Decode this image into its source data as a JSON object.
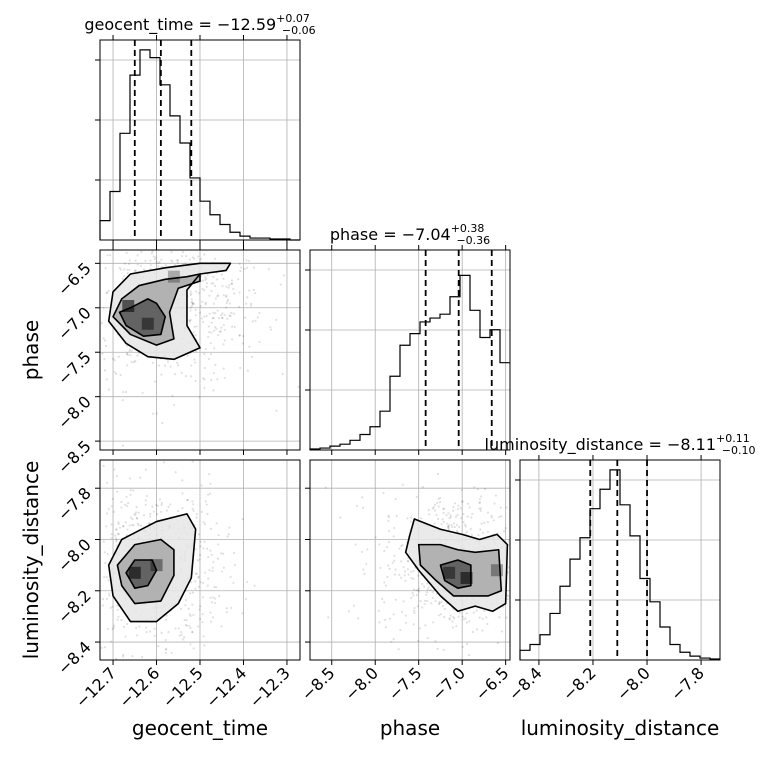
{
  "chart_data": {
    "type": "corner",
    "parameters": [
      "geocent_time",
      "phase",
      "luminosity_distance"
    ],
    "grid": true,
    "marginals": [
      {
        "param": "geocent_time",
        "title": {
          "main": "geocent_time = −12.59",
          "sup": "+0.07",
          "sub": "−0.06"
        },
        "range": [
          -12.73,
          -12.27
        ],
        "quantiles": [
          -12.65,
          -12.59,
          -12.52
        ],
        "bin_edges": [
          -12.73,
          -12.707,
          -12.684,
          -12.661,
          -12.638,
          -12.615,
          -12.592,
          -12.569,
          -12.546,
          -12.523,
          -12.5,
          -12.477,
          -12.454,
          -12.431,
          -12.408,
          -12.385,
          -12.362,
          -12.339,
          -12.316,
          -12.293,
          -12.27
        ],
        "counts": [
          10,
          25,
          55,
          85,
          98,
          94,
          80,
          64,
          50,
          32,
          20,
          13,
          8,
          4,
          2,
          1,
          1,
          0.5,
          0.5,
          0
        ],
        "ymax": 100
      },
      {
        "param": "phase",
        "title": {
          "main": "phase = −7.04",
          "sup": "+0.38",
          "sub": "−0.36"
        },
        "range": [
          -8.75,
          -6.45
        ],
        "quantiles": [
          -7.42,
          -7.04,
          -6.66
        ],
        "bin_edges": [
          -8.75,
          -8.635,
          -8.52,
          -8.405,
          -8.29,
          -8.175,
          -8.06,
          -7.945,
          -7.83,
          -7.715,
          -7.6,
          -7.485,
          -7.37,
          -7.255,
          -7.14,
          -7.025,
          -6.91,
          -6.795,
          -6.68,
          -6.565,
          -6.45
        ],
        "counts": [
          0.5,
          1,
          2,
          3,
          5,
          8,
          12,
          20,
          38,
          54,
          60,
          66,
          68,
          70,
          79,
          90,
          72,
          58,
          62,
          45
        ],
        "ymax": 100
      },
      {
        "param": "luminosity_distance",
        "title": {
          "main": "luminosity_distance = −8.11",
          "sup": "+0.11",
          "sub": "−0.10"
        },
        "range": [
          -8.47,
          -7.73
        ],
        "quantiles": [
          -8.21,
          -8.11,
          -8.0
        ],
        "bin_edges": [
          -8.47,
          -8.433,
          -8.396,
          -8.359,
          -8.322,
          -8.285,
          -8.248,
          -8.211,
          -8.174,
          -8.137,
          -8.1,
          -8.063,
          -8.026,
          -7.989,
          -7.952,
          -7.915,
          -7.878,
          -7.841,
          -7.804,
          -7.767,
          -7.73
        ],
        "counts": [
          5,
          8,
          13,
          24,
          38,
          52,
          63,
          78,
          88,
          98,
          80,
          64,
          42,
          30,
          17,
          8,
          4,
          2,
          1,
          0.5
        ],
        "ymax": 100
      }
    ],
    "joints": [
      {
        "x": "geocent_time",
        "y": "phase",
        "xrange": [
          -12.73,
          -12.27
        ],
        "yrange": [
          -8.6,
          -6.35
        ],
        "peaks": [
          {
            "x": -12.665,
            "y": -6.98,
            "w": 1.0
          },
          {
            "x": -12.62,
            "y": -7.18,
            "w": 0.8
          },
          {
            "x": -12.56,
            "y": -6.65,
            "w": 0.5
          }
        ],
        "contours": [
          {
            "level": "outer",
            "points": [
              [
                -12.7,
                -6.82
              ],
              [
                -12.66,
                -6.62
              ],
              [
                -12.58,
                -6.55
              ],
              [
                -12.5,
                -6.5
              ],
              [
                -12.43,
                -6.5
              ],
              [
                -12.44,
                -6.58
              ],
              [
                -12.5,
                -6.62
              ],
              [
                -12.53,
                -6.8
              ],
              [
                -12.53,
                -7.2
              ],
              [
                -12.5,
                -7.45
              ],
              [
                -12.56,
                -7.58
              ],
              [
                -12.62,
                -7.55
              ],
              [
                -12.67,
                -7.4
              ],
              [
                -12.71,
                -7.15
              ]
            ]
          },
          {
            "level": "middle",
            "points": [
              [
                -12.68,
                -6.9
              ],
              [
                -12.64,
                -6.75
              ],
              [
                -12.58,
                -6.68
              ],
              [
                -12.53,
                -6.65
              ],
              [
                -12.5,
                -6.62
              ],
              [
                -12.5,
                -6.7
              ],
              [
                -12.55,
                -6.78
              ],
              [
                -12.57,
                -7.05
              ],
              [
                -12.56,
                -7.35
              ],
              [
                -12.6,
                -7.42
              ],
              [
                -12.66,
                -7.3
              ],
              [
                -12.7,
                -7.1
              ]
            ]
          },
          {
            "level": "inner",
            "points": [
              [
                -12.66,
                -7.0
              ],
              [
                -12.62,
                -6.9
              ],
              [
                -12.6,
                -6.95
              ],
              [
                -12.58,
                -7.1
              ],
              [
                -12.59,
                -7.3
              ],
              [
                -12.63,
                -7.32
              ],
              [
                -12.67,
                -7.2
              ],
              [
                -12.685,
                -7.05
              ]
            ]
          }
        ]
      },
      {
        "x": "geocent_time",
        "y": "luminosity_distance",
        "xrange": [
          -12.73,
          -12.27
        ],
        "yrange": [
          -8.47,
          -7.69
        ],
        "peaks": [
          {
            "x": -12.65,
            "y": -8.13,
            "w": 1.0
          },
          {
            "x": -12.6,
            "y": -8.1,
            "w": 0.7
          }
        ],
        "contours": [
          {
            "level": "outer",
            "points": [
              [
                -12.71,
                -8.1
              ],
              [
                -12.68,
                -8.0
              ],
              [
                -12.6,
                -7.93
              ],
              [
                -12.53,
                -7.9
              ],
              [
                -12.51,
                -7.96
              ],
              [
                -12.52,
                -8.15
              ],
              [
                -12.55,
                -8.25
              ],
              [
                -12.6,
                -8.32
              ],
              [
                -12.66,
                -8.32
              ],
              [
                -12.7,
                -8.22
              ]
            ]
          },
          {
            "level": "middle",
            "points": [
              [
                -12.69,
                -8.1
              ],
              [
                -12.65,
                -8.02
              ],
              [
                -12.59,
                -8.0
              ],
              [
                -12.56,
                -8.04
              ],
              [
                -12.56,
                -8.14
              ],
              [
                -12.59,
                -8.24
              ],
              [
                -12.65,
                -8.25
              ],
              [
                -12.68,
                -8.18
              ]
            ]
          },
          {
            "level": "inner",
            "points": [
              [
                -12.67,
                -8.13
              ],
              [
                -12.65,
                -8.08
              ],
              [
                -12.61,
                -8.08
              ],
              [
                -12.6,
                -8.12
              ],
              [
                -12.62,
                -8.18
              ],
              [
                -12.65,
                -8.19
              ]
            ]
          }
        ]
      },
      {
        "x": "phase",
        "y": "luminosity_distance",
        "xrange": [
          -8.75,
          -6.45
        ],
        "yrange": [
          -8.47,
          -7.69
        ],
        "peaks": [
          {
            "x": -7.15,
            "y": -8.13,
            "w": 0.8
          },
          {
            "x": -6.95,
            "y": -8.15,
            "w": 1.0
          },
          {
            "x": -6.6,
            "y": -8.12,
            "w": 0.6
          }
        ],
        "contours": [
          {
            "level": "outer",
            "points": [
              [
                -7.6,
                -7.98
              ],
              [
                -7.55,
                -7.92
              ],
              [
                -7.25,
                -7.96
              ],
              [
                -7.0,
                -7.98
              ],
              [
                -6.8,
                -8.0
              ],
              [
                -6.6,
                -7.98
              ],
              [
                -6.48,
                -8.02
              ],
              [
                -6.5,
                -8.25
              ],
              [
                -6.65,
                -8.28
              ],
              [
                -6.85,
                -8.26
              ],
              [
                -7.05,
                -8.28
              ],
              [
                -7.25,
                -8.22
              ],
              [
                -7.5,
                -8.12
              ],
              [
                -7.65,
                -8.05
              ]
            ]
          },
          {
            "level": "middle",
            "points": [
              [
                -7.5,
                -8.02
              ],
              [
                -7.25,
                -8.02
              ],
              [
                -7.05,
                -8.04
              ],
              [
                -6.85,
                -8.05
              ],
              [
                -6.58,
                -8.04
              ],
              [
                -6.55,
                -8.2
              ],
              [
                -6.7,
                -8.22
              ],
              [
                -6.9,
                -8.22
              ],
              [
                -7.1,
                -8.22
              ],
              [
                -7.3,
                -8.16
              ],
              [
                -7.48,
                -8.1
              ]
            ]
          },
          {
            "level": "inner",
            "points": [
              [
                -7.25,
                -8.1
              ],
              [
                -7.05,
                -8.08
              ],
              [
                -6.9,
                -8.1
              ],
              [
                -6.9,
                -8.18
              ],
              [
                -7.05,
                -8.19
              ],
              [
                -7.2,
                -8.16
              ]
            ]
          }
        ]
      }
    ],
    "tick_labels": {
      "geocent_time": [
        "−12.7",
        "−12.6",
        "−12.5",
        "−12.4",
        "−12.3"
      ],
      "geocent_time_values": [
        -12.7,
        -12.6,
        -12.5,
        -12.4,
        -12.3
      ],
      "phase_x": [
        "−8.5",
        "−8.0",
        "−7.5",
        "−7.0",
        "−6.5"
      ],
      "phase_x_values": [
        -8.5,
        -8.0,
        -7.5,
        -7.0,
        -6.5
      ],
      "phase_y": [
        "−6.5",
        "−7.0",
        "−7.5",
        "−8.0",
        "−8.5"
      ],
      "phase_y_values": [
        -6.5,
        -7.0,
        -7.5,
        -8.0,
        -8.5
      ],
      "luminosity_distance_y": [
        "−7.8",
        "−8.0",
        "−8.2",
        "−8.4"
      ],
      "luminosity_distance_y_values": [
        -7.8,
        -8.0,
        -8.2,
        -8.4
      ],
      "luminosity_distance_x": [
        "−8.4",
        "−8.2",
        "−8.0",
        "−7.8"
      ],
      "luminosity_distance_x_values": [
        -8.4,
        -8.2,
        -8.0,
        -7.8
      ]
    },
    "axis_labels": {
      "x": [
        "geocent_time",
        "phase",
        "luminosity_distance"
      ],
      "y": [
        "phase",
        "luminosity_distance"
      ]
    }
  }
}
